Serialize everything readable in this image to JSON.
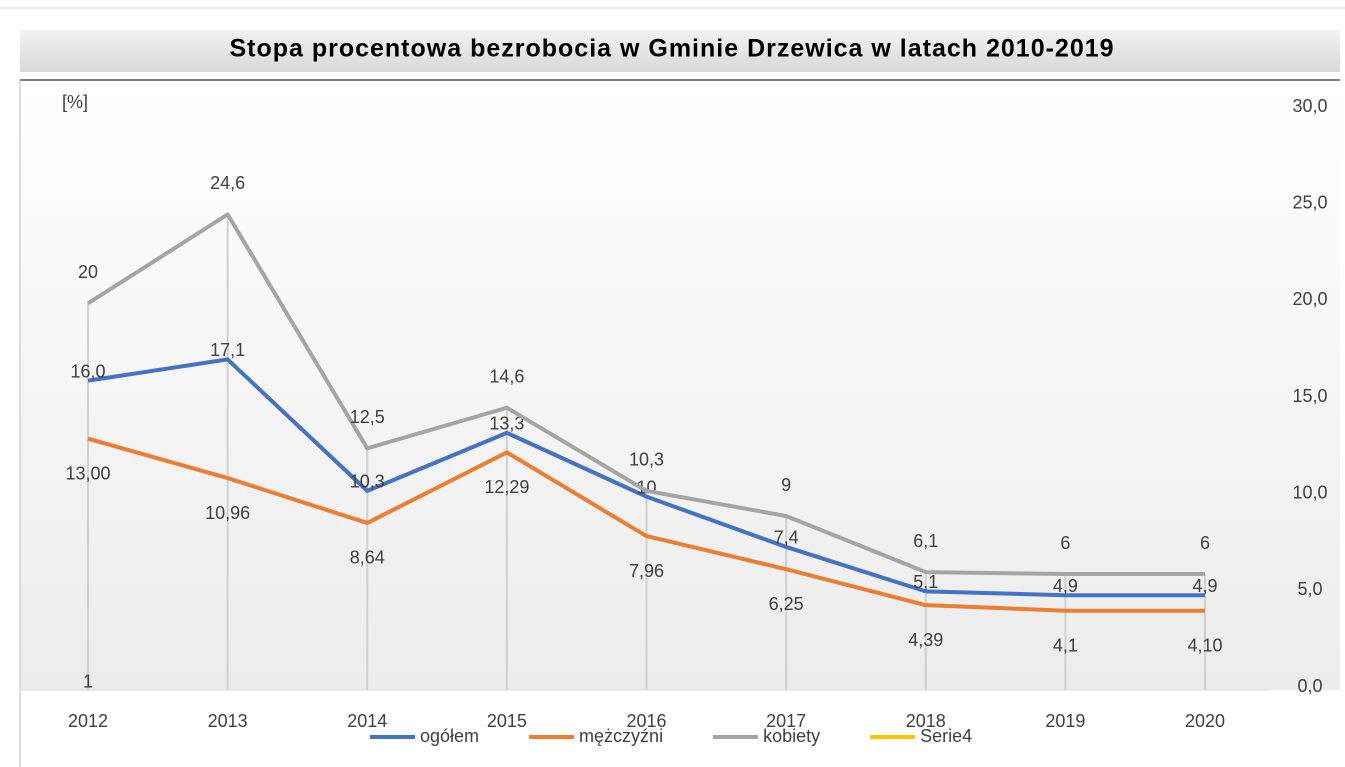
{
  "chart_data": {
    "type": "line",
    "title": "Stopa procentowa bezrobocia  w Gminie Drzewica  w latach 2010-2019",
    "y_label": "[%]",
    "categories": [
      "2012",
      "2013",
      "2014",
      "2015",
      "2016",
      "2017",
      "2018",
      "2019",
      "2020"
    ],
    "ylim": [
      0,
      30
    ],
    "yticks": [
      {
        "value": 0,
        "label": "0,0"
      },
      {
        "value": 5,
        "label": "5,0"
      },
      {
        "value": 10,
        "label": "10,0"
      },
      {
        "value": 15,
        "label": "15,0"
      },
      {
        "value": 20,
        "label": "20,0"
      },
      {
        "value": 25,
        "label": "25,0"
      },
      {
        "value": 30,
        "label": "30,0"
      }
    ],
    "legend": "bottom",
    "series": [
      {
        "name": "ogółem",
        "color": "#4472c4",
        "values": [
          16.0,
          17.1,
          10.3,
          13.3,
          10,
          7.4,
          5.1,
          4.9,
          4.9
        ],
        "value_labels": [
          "16,0",
          "17,1",
          "10,3",
          "13,3",
          "10",
          "7,4",
          "5,1",
          "4,9",
          "4,9"
        ]
      },
      {
        "name": "mężczyźni",
        "color": "#ed7d31",
        "values": [
          13.0,
          10.96,
          8.64,
          12.29,
          7.96,
          6.25,
          4.39,
          4.1,
          4.1
        ],
        "value_labels": [
          "13,00",
          "10,96",
          "8,64",
          "12,29",
          "7,96",
          "6,25",
          "4,39",
          "4,1",
          "4,10"
        ]
      },
      {
        "name": "kobiety",
        "color": "#a5a5a5",
        "values": [
          20,
          24.6,
          12.5,
          14.6,
          10.3,
          9,
          6.1,
          6,
          6
        ],
        "value_labels": [
          "20",
          "24,6",
          "12,5",
          "14,6",
          "10,3",
          "9",
          "6,1",
          "6",
          "6"
        ]
      },
      {
        "name": "Serie4",
        "color": "#ffc000",
        "values": [
          1,
          null,
          null,
          null,
          null,
          null,
          null,
          null,
          null
        ],
        "value_labels": [
          "1",
          null,
          null,
          null,
          null,
          null,
          null,
          null,
          null
        ]
      }
    ]
  }
}
